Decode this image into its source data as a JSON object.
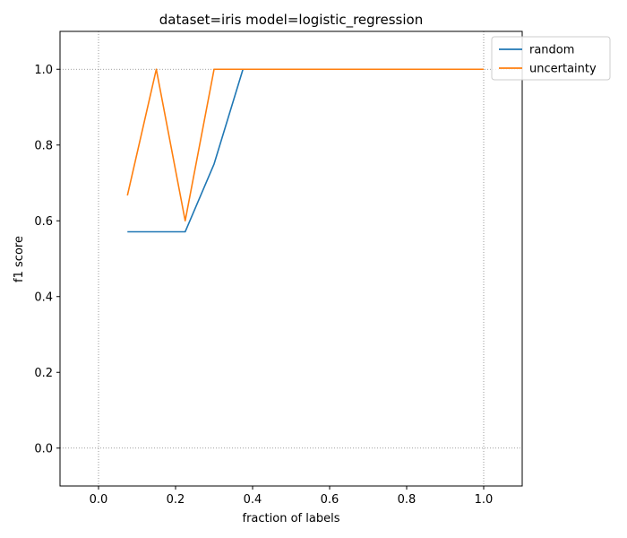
{
  "chart_data": {
    "type": "line",
    "title": "dataset=iris model=logistic_regression",
    "xlabel": "fraction of labels",
    "ylabel": "f1 score",
    "xlim": [
      -0.1,
      1.1
    ],
    "ylim": [
      -0.1,
      1.1
    ],
    "xticks": [
      0.0,
      0.2,
      0.4,
      0.6,
      0.8,
      1.0
    ],
    "yticks": [
      0.0,
      0.2,
      0.4,
      0.6,
      0.8,
      1.0
    ],
    "xtick_labels": [
      "0.0",
      "0.2",
      "0.4",
      "0.6",
      "0.8",
      "1.0"
    ],
    "ytick_labels": [
      "0.0",
      "0.2",
      "0.4",
      "0.6",
      "0.8",
      "1.0"
    ],
    "grid": false,
    "reference_lines": {
      "x": [
        0.0,
        1.0
      ],
      "y": [
        0.0,
        1.0
      ],
      "style": "dotted",
      "color": "#808080"
    },
    "legend": {
      "placement": "upper right, outside axes"
    },
    "series": [
      {
        "name": "random",
        "color": "#1f77b4",
        "x": [
          0.075,
          0.15,
          0.225,
          0.3,
          0.375,
          0.45,
          0.525,
          0.6,
          0.675,
          0.75,
          0.825,
          0.9,
          0.975,
          1.0
        ],
        "y": [
          0.571,
          0.571,
          0.571,
          0.75,
          1.0,
          1.0,
          1.0,
          1.0,
          1.0,
          1.0,
          1.0,
          1.0,
          1.0,
          1.0
        ]
      },
      {
        "name": "uncertainty",
        "color": "#ff7f0e",
        "x": [
          0.075,
          0.15,
          0.225,
          0.3,
          0.375,
          0.45,
          0.525,
          0.6,
          0.675,
          0.75,
          0.825,
          0.9,
          0.975,
          1.0
        ],
        "y": [
          0.667,
          1.0,
          0.6,
          1.0,
          1.0,
          1.0,
          1.0,
          1.0,
          1.0,
          1.0,
          1.0,
          1.0,
          1.0,
          1.0
        ]
      }
    ]
  }
}
